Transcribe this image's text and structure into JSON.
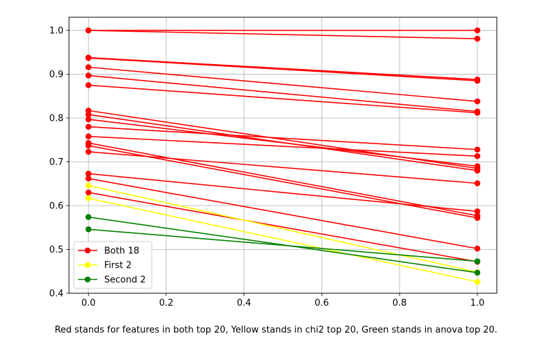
{
  "chart_data": {
    "type": "line",
    "x": [
      0.0,
      1.0
    ],
    "xlim": [
      -0.05,
      1.05
    ],
    "ylim": [
      0.4,
      1.03
    ],
    "xticks": [
      "0.0",
      "0.2",
      "0.4",
      "0.6",
      "0.8",
      "1.0"
    ],
    "yticks": [
      "0.4",
      "0.5",
      "0.6",
      "0.7",
      "0.8",
      "0.9",
      "1.0"
    ],
    "grid": true,
    "legend_position": "lower-left",
    "legend": [
      {
        "label": "Both 18",
        "color": "#ff0000"
      },
      {
        "label": "First 2",
        "color": "#ffff00"
      },
      {
        "label": "Second 2",
        "color": "#008000"
      }
    ],
    "groups": [
      {
        "color": "#ff0000",
        "lines": [
          [
            1.0,
            1.0
          ],
          [
            1.0,
            0.981
          ],
          [
            0.938,
            0.888
          ],
          [
            0.937,
            0.885
          ],
          [
            0.916,
            0.838
          ],
          [
            0.897,
            0.815
          ],
          [
            0.875,
            0.812
          ],
          [
            0.817,
            0.685
          ],
          [
            0.808,
            0.68
          ],
          [
            0.797,
            0.69
          ],
          [
            0.78,
            0.728
          ],
          [
            0.758,
            0.713
          ],
          [
            0.743,
            0.577
          ],
          [
            0.737,
            0.572
          ],
          [
            0.723,
            0.651
          ],
          [
            0.673,
            0.587
          ],
          [
            0.662,
            0.502
          ],
          [
            0.63,
            0.472
          ]
        ]
      },
      {
        "color": "#ffff00",
        "lines": [
          [
            0.646,
            0.448
          ],
          [
            0.617,
            0.426
          ]
        ]
      },
      {
        "color": "#008000",
        "lines": [
          [
            0.574,
            0.447
          ],
          [
            0.546,
            0.473
          ]
        ]
      }
    ]
  },
  "caption": "Red stands for features in both top 20, Yellow stands in chi2 top 20, Green stands in anova top 20."
}
